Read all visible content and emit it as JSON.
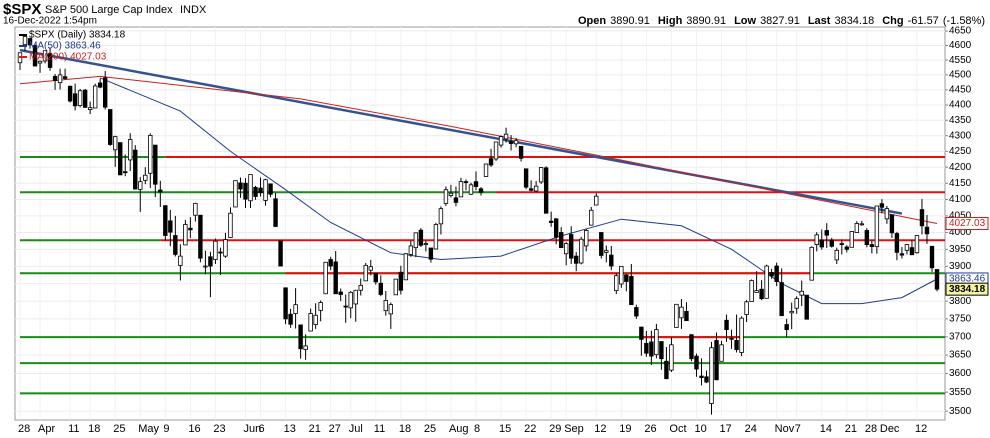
{
  "chart_data": {
    "type": "candlestick",
    "title": "$SPX",
    "subtitle": "S&P 500 Large Cap Index",
    "exchange": "INDX",
    "timestamp": "16-Dec-2022 1:54pm",
    "quote": [
      {
        "label": "Open",
        "value": 3890.91
      },
      {
        "label": "High",
        "value": 3890.91
      },
      {
        "label": "Low",
        "value": 3827.91
      },
      {
        "label": "Last",
        "value": 3834.18
      },
      {
        "label": "Chg",
        "value": -61.57,
        "note": "(-1.58%)"
      }
    ],
    "legend": [
      {
        "label": "$SPX (Daily) 3834.18",
        "color": "#000000"
      },
      {
        "label": "MA(50) 3863.46",
        "color": "#1f3a8f"
      },
      {
        "label": "MA(200) 4027.03",
        "color": "#cc1f1f"
      }
    ],
    "log": true,
    "grid": true,
    "ylim": [
      3477,
      4664
    ],
    "yticks": [
      3500,
      3550,
      3600,
      3650,
      3700,
      3750,
      3800,
      3850,
      3900,
      3950,
      4000,
      4050,
      4100,
      4150,
      4200,
      4250,
      4300,
      4350,
      4400,
      4450,
      4500,
      4550,
      4600,
      4650
    ],
    "categories": [
      "28",
      null,
      null,
      null,
      "Apr",
      null,
      null,
      null,
      null,
      null,
      "11",
      null,
      null,
      null,
      "18",
      null,
      null,
      null,
      null,
      "25",
      null,
      null,
      null,
      null,
      "May",
      null,
      null,
      null,
      null,
      "9",
      null,
      null,
      null,
      null,
      "16",
      null,
      null,
      null,
      null,
      "23",
      null,
      null,
      null,
      null,
      null,
      "Jun",
      null,
      null,
      "6",
      null,
      null,
      null,
      null,
      "13",
      null,
      null,
      null,
      null,
      "21",
      null,
      null,
      null,
      "27",
      null,
      null,
      null,
      "Jul",
      null,
      null,
      null,
      null,
      "11",
      null,
      null,
      null,
      null,
      "18",
      null,
      null,
      null,
      null,
      "25",
      null,
      null,
      null,
      null,
      "Aug",
      null,
      null,
      null,
      null,
      "8",
      null,
      null,
      null,
      null,
      "15",
      null,
      null,
      null,
      null,
      "22",
      null,
      null,
      null,
      null,
      "29",
      null,
      null,
      "Sep",
      null,
      null,
      null,
      null,
      null,
      "12",
      null,
      null,
      null,
      null,
      "19",
      null,
      null,
      null,
      null,
      "26",
      null,
      null,
      null,
      null,
      "Oct",
      null,
      null,
      null,
      null,
      "10",
      null,
      null,
      null,
      null,
      "17",
      null,
      null,
      null,
      null,
      "24",
      null,
      null,
      null,
      null,
      null,
      "Nov",
      null,
      null,
      null,
      "7",
      null,
      null,
      null,
      null,
      "14",
      null,
      null,
      null,
      null,
      "21",
      null,
      null,
      null,
      "28",
      null,
      null,
      "Dec",
      null,
      null,
      null,
      null,
      null,
      null,
      "12",
      null,
      null,
      null,
      null
    ],
    "ohlc": [
      [
        4541,
        4575,
        4517,
        4575
      ],
      [
        4603,
        4637,
        4581,
        4631
      ],
      [
        4624,
        4627,
        4589,
        4602
      ],
      [
        4600,
        4603,
        4530,
        4530
      ],
      [
        4540,
        4549,
        4507,
        4546
      ],
      [
        4547,
        4583,
        4539,
        4582
      ],
      [
        4573,
        4593,
        4514,
        4525
      ],
      [
        4495,
        4503,
        4450,
        4481
      ],
      [
        4474,
        4521,
        4451,
        4500
      ],
      [
        4494,
        4521,
        4484,
        4488
      ],
      [
        4462,
        4464,
        4408,
        4413
      ],
      [
        4437,
        4471,
        4382,
        4397
      ],
      [
        4398,
        4453,
        4392,
        4447
      ],
      [
        4449,
        4453,
        4392,
        4392
      ],
      [
        4385,
        4411,
        4370,
        4391
      ],
      [
        4390,
        4471,
        4390,
        4463
      ],
      [
        4473,
        4488,
        4455,
        4459
      ],
      [
        4490,
        4513,
        4385,
        4393
      ],
      [
        4385,
        4386,
        4268,
        4272
      ],
      [
        4255,
        4300,
        4201,
        4297
      ],
      [
        4278,
        4278,
        4176,
        4176
      ],
      [
        4186,
        4240,
        4172,
        4184
      ],
      [
        4223,
        4308,
        4188,
        4288
      ],
      [
        4254,
        4270,
        4131,
        4132
      ],
      [
        4131,
        4169,
        4062,
        4155
      ],
      [
        4159,
        4200,
        4147,
        4175
      ],
      [
        4181,
        4308,
        4135,
        4301
      ],
      [
        4270,
        4270,
        4107,
        4147
      ],
      [
        4129,
        4158,
        4077,
        4123
      ],
      [
        4081,
        4082,
        3976,
        3991
      ],
      [
        4035,
        4068,
        3959,
        4001
      ],
      [
        3991,
        4050,
        3929,
        3935
      ],
      [
        3903,
        3965,
        3859,
        3930
      ],
      [
        3963,
        4038,
        3963,
        4024
      ],
      [
        4013,
        4046,
        3984,
        4008
      ],
      [
        4052,
        4090,
        4033,
        4088
      ],
      [
        4052,
        4052,
        3912,
        3924
      ],
      [
        3900,
        3946,
        3877,
        3901
      ],
      [
        3928,
        3943,
        3811,
        3901
      ],
      [
        3920,
        3982,
        3907,
        3974
      ],
      [
        3942,
        3955,
        3875,
        3941
      ],
      [
        3930,
        3999,
        3925,
        3979
      ],
      [
        3985,
        4076,
        3985,
        4058
      ],
      [
        4077,
        4158,
        4077,
        4158
      ],
      [
        4151,
        4168,
        4105,
        4132
      ],
      [
        4150,
        4166,
        4074,
        4101
      ],
      [
        4096,
        4177,
        4074,
        4177
      ],
      [
        4137,
        4142,
        4099,
        4109
      ],
      [
        4135,
        4168,
        4109,
        4121
      ],
      [
        4097,
        4164,
        4081,
        4161
      ],
      [
        4148,
        4149,
        4107,
        4116
      ],
      [
        4102,
        4120,
        4017,
        4018
      ],
      [
        3975,
        3975,
        3901,
        3901
      ],
      [
        3838,
        3838,
        3735,
        3750
      ],
      [
        3763,
        3778,
        3725,
        3735
      ],
      [
        3765,
        3837,
        3723,
        3790
      ],
      [
        3733,
        3733,
        3640,
        3667
      ],
      [
        3665,
        3707,
        3637,
        3675
      ],
      [
        3716,
        3779,
        3716,
        3765
      ],
      [
        3734,
        3794,
        3722,
        3760
      ],
      [
        3774,
        3802,
        3743,
        3796
      ],
      [
        3821,
        3913,
        3821,
        3912
      ],
      [
        3920,
        3928,
        3889,
        3901
      ],
      [
        3913,
        3945,
        3820,
        3821
      ],
      [
        3826,
        3836,
        3800,
        3819
      ],
      [
        3786,
        3819,
        3739,
        3785
      ],
      [
        3781,
        3829,
        3752,
        3825
      ],
      [
        3792,
        3832,
        3742,
        3831
      ],
      [
        3831,
        3865,
        3816,
        3845
      ],
      [
        3858,
        3910,
        3858,
        3903
      ],
      [
        3889,
        3919,
        3874,
        3899
      ],
      [
        3880,
        3880,
        3847,
        3855
      ],
      [
        3851,
        3874,
        3814,
        3819
      ],
      [
        3773,
        3829,
        3759,
        3802
      ],
      [
        3764,
        3796,
        3722,
        3790
      ],
      [
        3818,
        3863,
        3818,
        3863
      ],
      [
        3883,
        3902,
        3819,
        3831
      ],
      [
        3861,
        3939,
        3861,
        3937
      ],
      [
        3935,
        3975,
        3928,
        3960
      ],
      [
        3955,
        3999,
        3927,
        3999
      ],
      [
        4007,
        4013,
        3957,
        3962
      ],
      [
        3966,
        3975,
        3944,
        3967
      ],
      [
        3954,
        3954,
        3911,
        3921
      ],
      [
        3951,
        4029,
        3951,
        4024
      ],
      [
        4026,
        4079,
        3994,
        4072
      ],
      [
        4088,
        4140,
        4080,
        4130
      ],
      [
        4112,
        4145,
        4106,
        4119
      ],
      [
        4105,
        4140,
        4079,
        4091
      ],
      [
        4108,
        4167,
        4108,
        4155
      ],
      [
        4155,
        4162,
        4128,
        4152
      ],
      [
        4116,
        4152,
        4114,
        4145
      ],
      [
        4155,
        4187,
        4128,
        4140
      ],
      [
        4133,
        4138,
        4112,
        4122
      ],
      [
        4171,
        4211,
        4171,
        4210
      ],
      [
        4227,
        4258,
        4201,
        4207
      ],
      [
        4226,
        4280,
        4220,
        4280
      ],
      [
        4270,
        4301,
        4262,
        4297
      ],
      [
        4290,
        4326,
        4278,
        4305
      ],
      [
        4281,
        4302,
        4253,
        4275
      ],
      [
        4274,
        4293,
        4263,
        4284
      ],
      [
        4266,
        4266,
        4218,
        4228
      ],
      [
        4195,
        4195,
        4132,
        4138
      ],
      [
        4133,
        4159,
        4125,
        4128
      ],
      [
        4126,
        4157,
        4122,
        4141
      ],
      [
        4154,
        4200,
        4148,
        4199
      ],
      [
        4198,
        4203,
        4057,
        4058
      ],
      [
        4034,
        4063,
        4017,
        4030
      ],
      [
        4041,
        4044,
        3965,
        3986
      ],
      [
        4000,
        4016,
        3954,
        3955
      ],
      [
        3937,
        3971,
        3903,
        3967
      ],
      [
        3994,
        4019,
        3907,
        3924
      ],
      [
        3930,
        3942,
        3886,
        3909
      ],
      [
        3910,
        3987,
        3906,
        3980
      ],
      [
        3960,
        4011,
        3944,
        4006
      ],
      [
        4022,
        4077,
        4022,
        4067
      ],
      [
        4083,
        4119,
        4083,
        4110
      ],
      [
        4000,
        4000,
        3923,
        3932
      ],
      [
        3941,
        3961,
        3912,
        3946
      ],
      [
        3933,
        3960,
        3889,
        3901
      ],
      [
        3830,
        3880,
        3820,
        3873
      ],
      [
        3849,
        3900,
        3838,
        3900
      ],
      [
        3875,
        3877,
        3828,
        3856
      ],
      [
        3871,
        3907,
        3790,
        3790
      ],
      [
        3782,
        3790,
        3750,
        3758
      ],
      [
        3727,
        3727,
        3648,
        3693
      ],
      [
        3682,
        3716,
        3645,
        3655
      ],
      [
        3686,
        3717,
        3623,
        3647
      ],
      [
        3651,
        3736,
        3641,
        3720
      ],
      [
        3687,
        3687,
        3610,
        3640
      ],
      [
        3633,
        3672,
        3585,
        3586
      ],
      [
        3609,
        3698,
        3604,
        3678
      ],
      [
        3726,
        3792,
        3726,
        3791
      ],
      [
        3753,
        3806,
        3722,
        3783
      ],
      [
        3771,
        3797,
        3744,
        3745
      ],
      [
        3706,
        3706,
        3633,
        3640
      ],
      [
        3647,
        3654,
        3591,
        3612
      ],
      [
        3593,
        3641,
        3568,
        3589
      ],
      [
        3591,
        3608,
        3574,
        3577
      ],
      [
        3520,
        3686,
        3491,
        3670
      ],
      [
        3690,
        3712,
        3582,
        3583
      ],
      [
        3633,
        3689,
        3633,
        3678
      ],
      [
        3746,
        3762,
        3686,
        3720
      ],
      [
        3696,
        3720,
        3667,
        3695
      ],
      [
        3690,
        3762,
        3657,
        3665
      ],
      [
        3657,
        3757,
        3647,
        3752
      ],
      [
        3762,
        3803,
        3741,
        3798
      ],
      [
        3799,
        3862,
        3799,
        3859
      ],
      [
        3825,
        3886,
        3824,
        3830
      ],
      [
        3834,
        3860,
        3803,
        3807
      ],
      [
        3808,
        3905,
        3808,
        3901
      ],
      [
        3882,
        3893,
        3864,
        3872
      ],
      [
        3901,
        3911,
        3843,
        3856
      ],
      [
        3853,
        3894,
        3758,
        3759
      ],
      [
        3734,
        3750,
        3699,
        3720
      ],
      [
        3767,
        3796,
        3721,
        3771
      ],
      [
        3780,
        3814,
        3764,
        3807
      ],
      [
        3817,
        3859,
        3786,
        3828
      ],
      [
        3817,
        3817,
        3748,
        3749
      ],
      [
        3860,
        3959,
        3860,
        3956
      ],
      [
        3964,
        4001,
        3944,
        3993
      ],
      [
        3977,
        4009,
        3949,
        3957
      ],
      [
        4006,
        4028,
        3954,
        3992
      ],
      [
        3977,
        3984,
        3955,
        3959
      ],
      [
        3919,
        3955,
        3907,
        3947
      ],
      [
        3967,
        3979,
        3935,
        3965
      ],
      [
        3957,
        3962,
        3941,
        3950
      ],
      [
        3956,
        4004,
        3956,
        4003
      ],
      [
        4000,
        4034,
        3999,
        4027
      ],
      [
        4024,
        4035,
        4020,
        4026
      ],
      [
        4006,
        4013,
        3956,
        3964
      ],
      [
        3964,
        3976,
        3938,
        3958
      ],
      [
        3958,
        4080,
        3937,
        4080
      ],
      [
        4087,
        4101,
        4058,
        4076
      ],
      [
        4041,
        4080,
        4026,
        4072
      ],
      [
        4053,
        4053,
        3984,
        3999
      ],
      [
        3997,
        4002,
        3918,
        3941
      ],
      [
        3937,
        3957,
        3923,
        3933
      ],
      [
        3947,
        3966,
        3935,
        3964
      ],
      [
        3955,
        3977,
        3933,
        3934
      ],
      [
        3940,
        3991,
        3937,
        3991
      ],
      [
        4069,
        4101,
        3994,
        4020
      ],
      [
        4016,
        4053,
        3966,
        3996
      ],
      [
        3959,
        3960,
        3884,
        3896
      ],
      [
        3890.91,
        3890.91,
        3827.91,
        3834.18
      ]
    ],
    "series": [
      {
        "name": "MA(50)",
        "color": "#1f3a8f",
        "x": [
          16,
          32,
          42,
          53,
          62,
          74,
          84,
          96,
          108,
          120,
          132,
          142,
          152,
          160,
          168,
          176,
          183
        ],
        "values": [
          4490,
          4380,
          4250,
          4130,
          4030,
          3940,
          3920,
          3930,
          3990,
          4040,
          4020,
          3950,
          3850,
          3793,
          3793,
          3810,
          3863.46
        ]
      },
      {
        "name": "MA(200)",
        "color": "#cc1f1f",
        "x": [
          0,
          16,
          56,
          86,
          116,
          136,
          156,
          176,
          183
        ],
        "values": [
          4470,
          4495,
          4420,
          4330,
          4235,
          4172,
          4109,
          4048,
          4027.03
        ]
      }
    ],
    "trendline": {
      "color": "#34538f",
      "x": [
        0,
        176
      ],
      "values": [
        4584,
        4057
      ]
    },
    "levels": [
      {
        "value": 4232,
        "color": "#1a8a1a",
        "from": 0,
        "to": 29
      },
      {
        "value": 4232,
        "color": "#e01010",
        "from": 29,
        "to": 185
      },
      {
        "value": 4122,
        "color": "#1a8a1a",
        "from": 0,
        "to": 95
      },
      {
        "value": 4122,
        "color": "#e01010",
        "from": 95,
        "to": 185
      },
      {
        "value": 3977,
        "color": "#1a8a1a",
        "from": 0,
        "to": 28
      },
      {
        "value": 3977,
        "color": "#e01010",
        "from": 28,
        "to": 185
      },
      {
        "value": 3880,
        "color": "#1a8a1a",
        "from": 0,
        "to": 185
      },
      {
        "value": 3880,
        "color": "#e01010",
        "from": 53,
        "to": 158
      },
      {
        "value": 3699,
        "color": "#1a8a1a",
        "from": 0,
        "to": 185
      },
      {
        "value": 3699,
        "color": "#e01010",
        "from": 124,
        "to": 144
      },
      {
        "value": 3628,
        "color": "#1a8a1a",
        "from": 0,
        "to": 185
      },
      {
        "value": 3547,
        "color": "#1a8a1a",
        "from": 0,
        "to": 185
      }
    ],
    "badges": [
      {
        "value": 4027.03,
        "color": "#cc1f1f"
      },
      {
        "value": 3863.46,
        "color": "#1f3a8f"
      },
      {
        "value": 3834.18,
        "color": "#000000"
      }
    ]
  }
}
